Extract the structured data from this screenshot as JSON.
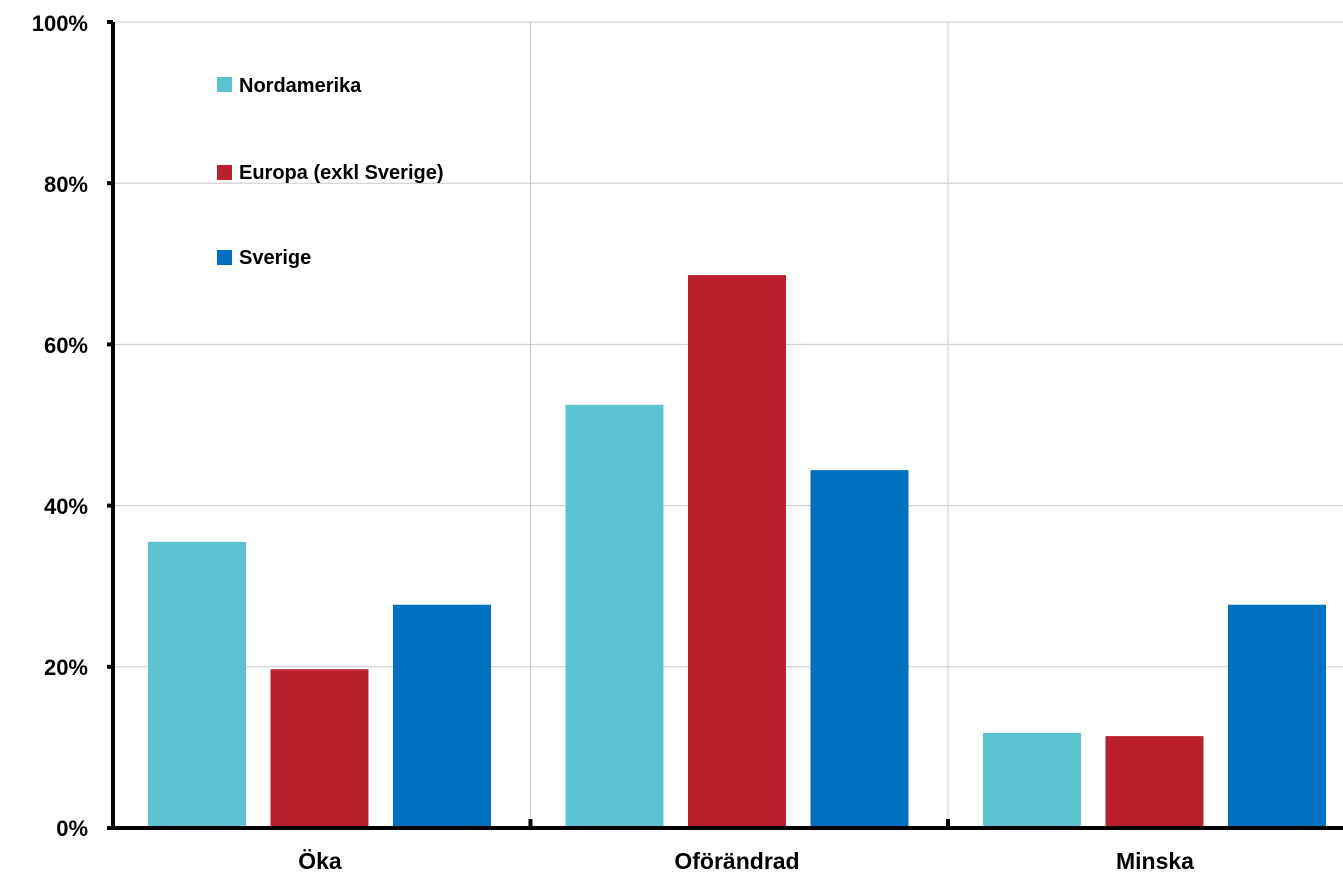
{
  "chart_data": {
    "type": "bar",
    "categories": [
      "Öka",
      "Oförändrad",
      "Minska"
    ],
    "series": [
      {
        "name": "Nordamerika",
        "color": "#5BC2D0",
        "values": [
          35.5,
          52.5,
          11.8
        ]
      },
      {
        "name": "Europa (exkl Sverige)",
        "color": "#B91F2D",
        "values": [
          19.7,
          68.6,
          11.4
        ]
      },
      {
        "name": "Sverige",
        "color": "#0071C0",
        "values": [
          27.7,
          44.4,
          27.7
        ]
      }
    ],
    "y_ticks": [
      "0%",
      "20%",
      "40%",
      "60%",
      "80%",
      "100%"
    ],
    "ylim": [
      0,
      100
    ],
    "y_unit": "%",
    "grid": true,
    "legend_position": "top-left"
  }
}
